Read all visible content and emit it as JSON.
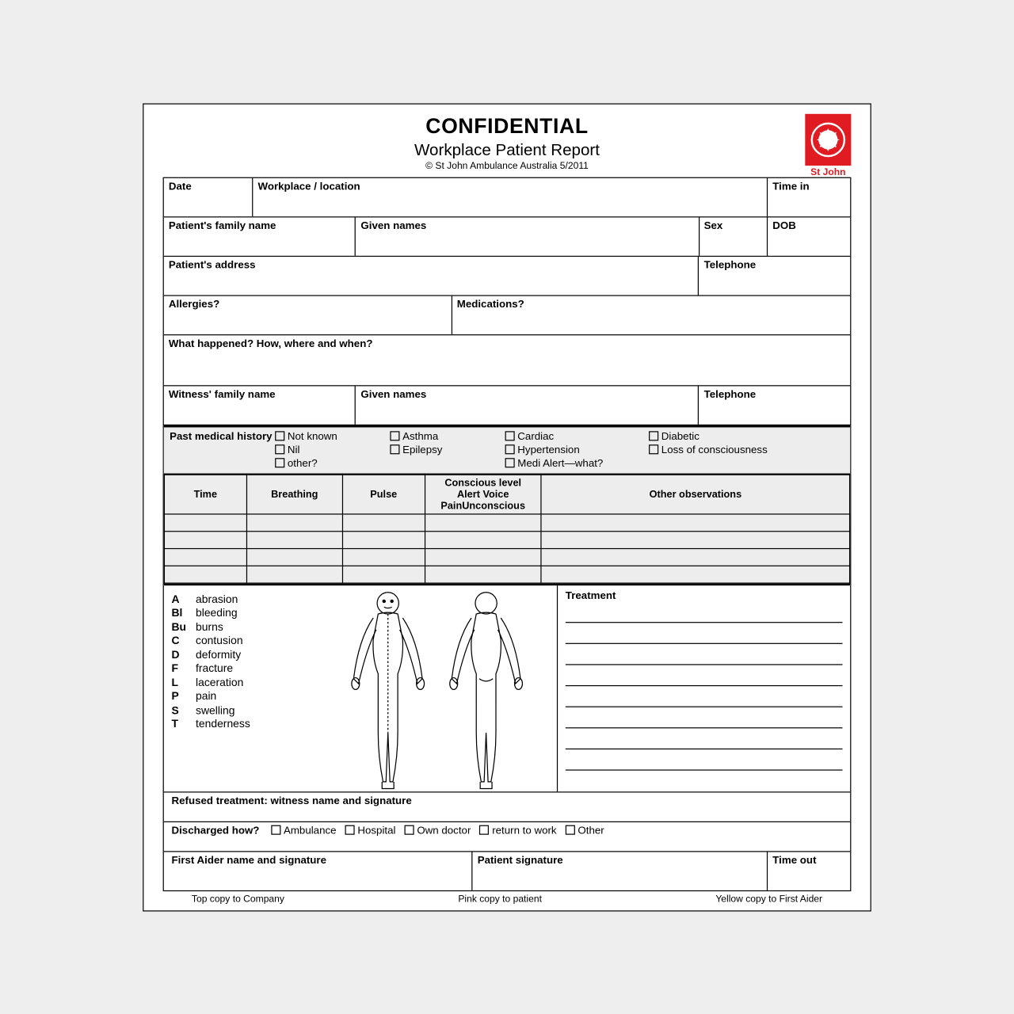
{
  "header": {
    "title": "CONFIDENTIAL",
    "subtitle": "Workplace Patient Report",
    "copyright": "© St John Ambulance Australia 5/2011",
    "logo_color": "#e01b22",
    "logo_text": "St John"
  },
  "fields": {
    "date": "Date",
    "workplace": "Workplace / location",
    "time_in": "Time in",
    "family_name": "Patient's family name",
    "given_names": "Given names",
    "sex": "Sex",
    "dob": "DOB",
    "address": "Patient's address",
    "telephone": "Telephone",
    "allergies": "Allergies?",
    "medications": "Medications?",
    "what_happened": "What happened? How, where and when?",
    "witness_family": "Witness' family name",
    "witness_given": "Given names",
    "witness_phone": "Telephone",
    "refused": "Refused treatment: witness name and signature",
    "discharged": "Discharged how?",
    "first_aider": "First Aider name and signature",
    "patient_sig": "Patient signature",
    "time_out": "Time out"
  },
  "pmh": {
    "label": "Past medical history",
    "options": [
      "Not known",
      "Asthma",
      "Cardiac",
      "Diabetic",
      "Nil",
      "Epilepsy",
      "Hypertension",
      "Loss of consciousness",
      "other?",
      "",
      "Medi Alert—what?",
      ""
    ]
  },
  "obs": {
    "headers": [
      "Time",
      "Breathing",
      "Pulse",
      "Conscious level",
      "Other observations"
    ],
    "avpu_prefix": [
      "A",
      "V",
      "P",
      "U"
    ],
    "avpu_rest": [
      "lert ",
      "oice ",
      "ain",
      "nconscious"
    ],
    "rows": 4
  },
  "legend": [
    {
      "code": "A",
      "label": "abrasion"
    },
    {
      "code": "Bl",
      "label": "bleeding"
    },
    {
      "code": "Bu",
      "label": "burns"
    },
    {
      "code": "C",
      "label": "contusion"
    },
    {
      "code": "D",
      "label": "deformity"
    },
    {
      "code": "F",
      "label": "fracture"
    },
    {
      "code": "L",
      "label": "laceration"
    },
    {
      "code": "P",
      "label": "pain"
    },
    {
      "code": "S",
      "label": "swelling"
    },
    {
      "code": "T",
      "label": "tenderness"
    }
  ],
  "treatment": {
    "label": "Treatment",
    "lines": 8
  },
  "discharge_options": [
    "Ambulance",
    "Hospital",
    "Own doctor",
    "return to work",
    "Other"
  ],
  "footer": [
    "Top copy to Company",
    "Pink copy to patient",
    "Yellow copy to First Aider"
  ],
  "colors": {
    "bg": "#eeeeee",
    "page": "#ffffff",
    "grey": "#ededed",
    "border": "#000000"
  }
}
